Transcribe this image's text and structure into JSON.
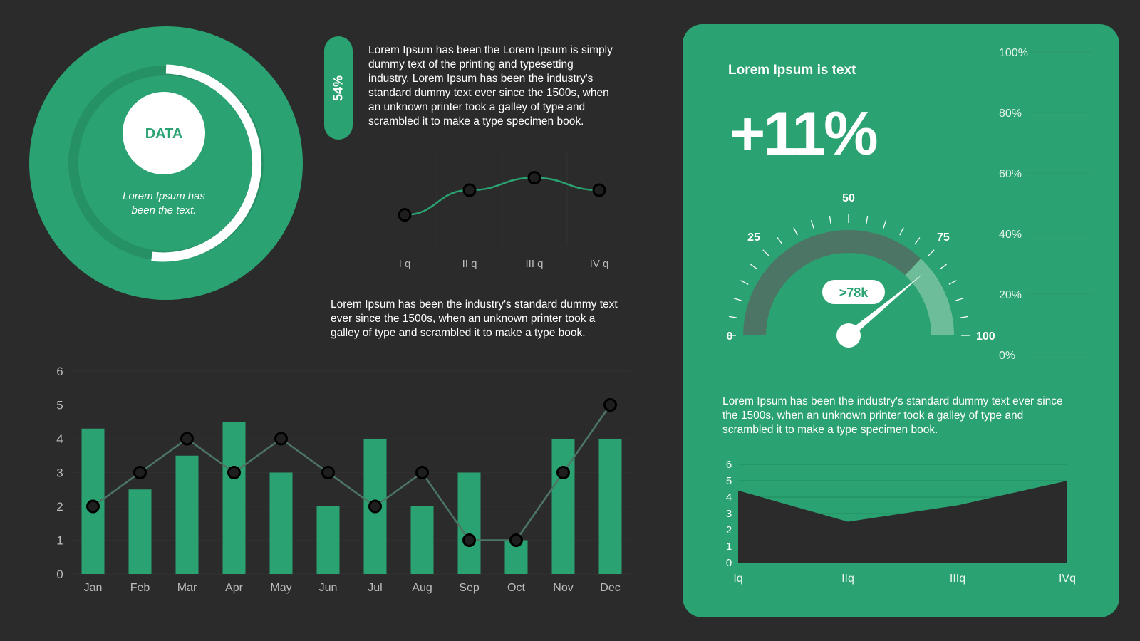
{
  "colors": {
    "background": "#2b2b2b",
    "accent": "#2ba271",
    "accent_dark": "#4d7565",
    "accent_light": "#6dbd98",
    "ink": "#ffffff"
  },
  "donut": {
    "center_label": "DATA",
    "caption_line1": "Lorem Ipsum has",
    "caption_line2": "been the text."
  },
  "pill": {
    "value": "54%"
  },
  "top_text": {
    "lines": [
      "Lorem Ipsum has been the Lorem Ipsum is simply",
      "dummy text of the printing and typesetting",
      "industry. Lorem Ipsum has been the industry's",
      "standard dummy text ever since the 1500s, when",
      "an unknown printer took a galley of type and",
      "scrambled it to make a type specimen book."
    ]
  },
  "middle_text": {
    "lines": [
      "Lorem Ipsum has been the industry's standard dummy text",
      "ever since the 1500s, when an unknown printer took a",
      "galley of type and scrambled it to make a type book."
    ]
  },
  "card": {
    "title": "Lorem Ipsum is text",
    "big_value": "+11%",
    "gauge": {
      "labels": {
        "l0": "0",
        "l25": "25",
        "l50": "50",
        "l75": "75",
        "l100": "100"
      },
      "badge": ">78k",
      "value": 78
    },
    "percent_ticks": [
      "100%",
      "80%",
      "60%",
      "40%",
      "20%",
      "0%"
    ],
    "text": {
      "lines": [
        "Lorem Ipsum has been the industry's standard dummy text ever since",
        "the 1500s, when an unknown printer took a galley of type and",
        "scrambled it to make a type specimen book."
      ]
    }
  },
  "chart_data": [
    {
      "type": "line",
      "categories": [
        "I q",
        "II q",
        "III q",
        "IV q"
      ],
      "values": [
        1.0,
        1.8,
        2.2,
        1.8
      ],
      "ylim": [
        0,
        3
      ]
    },
    {
      "type": "bar",
      "categories": [
        "Jan",
        "Feb",
        "Mar",
        "Apr",
        "May",
        "Jun",
        "Jul",
        "Aug",
        "Sep",
        "Oct",
        "Nov",
        "Dec"
      ],
      "series": [
        {
          "type": "bar",
          "values": [
            4.3,
            2.5,
            3.5,
            4.5,
            3,
            2,
            4,
            2,
            3,
            1,
            4,
            4
          ]
        },
        {
          "type": "line",
          "values": [
            2,
            3,
            4,
            3,
            4,
            3,
            2,
            3,
            1,
            1,
            3,
            5
          ]
        }
      ],
      "ylim": [
        0,
        6
      ],
      "yticks": [
        "0",
        "1",
        "2",
        "3",
        "4",
        "5",
        "6"
      ]
    },
    {
      "type": "area",
      "categories": [
        "Iq",
        "IIq",
        "IIIq",
        "IVq"
      ],
      "values": [
        4.4,
        2.5,
        3.5,
        5.0
      ],
      "ylim": [
        0,
        6
      ],
      "yticks": [
        "0",
        "1",
        "2",
        "3",
        "4",
        "5",
        "6"
      ]
    }
  ]
}
